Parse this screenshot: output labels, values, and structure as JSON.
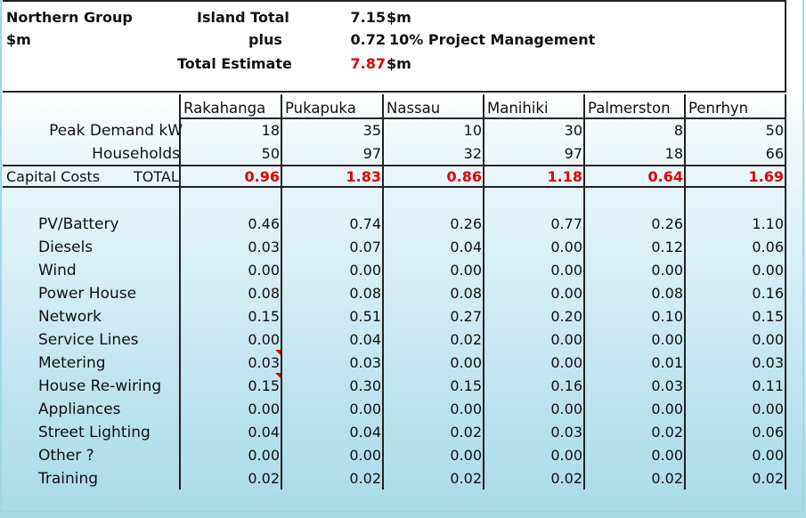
{
  "header": {
    "group_title": "Northern Group",
    "unit": "$m",
    "island_total_label": "Island Total",
    "island_total_value": "7.15",
    "island_total_unit": "$m",
    "plus_label": "plus",
    "plus_value": "0.72",
    "plus_note": "10% Project Management",
    "total_estimate_label": "Total Estimate",
    "total_estimate_value": "7.87",
    "total_estimate_unit": "$m"
  },
  "islands": [
    "Rakahanga",
    "Pukapuka",
    "Nassau",
    "Manihiki",
    "Palmerston",
    "Penrhyn"
  ],
  "summary": {
    "peak_demand_label": "Peak Demand kW",
    "peak_demand": [
      "18",
      "35",
      "10",
      "30",
      "8",
      "50"
    ],
    "households_label": "Households",
    "households": [
      "50",
      "97",
      "32",
      "97",
      "18",
      "66"
    ],
    "capital_costs_label": "Capital Costs",
    "total_label": "TOTAL",
    "capital_totals": [
      "0.96",
      "1.83",
      "0.86",
      "1.18",
      "0.64",
      "1.69"
    ]
  },
  "rows": [
    {
      "label": "PV/Battery",
      "values": [
        "0.46",
        "0.74",
        "0.26",
        "0.77",
        "0.26",
        "1.10"
      ]
    },
    {
      "label": "Diesels",
      "values": [
        "0.03",
        "0.07",
        "0.04",
        "0.00",
        "0.12",
        "0.06"
      ]
    },
    {
      "label": "Wind",
      "values": [
        "0.00",
        "0.00",
        "0.00",
        "0.00",
        "0.00",
        "0.00"
      ]
    },
    {
      "label": "Power House",
      "values": [
        "0.08",
        "0.08",
        "0.08",
        "0.00",
        "0.08",
        "0.16"
      ]
    },
    {
      "label": "Network",
      "values": [
        "0.15",
        "0.51",
        "0.27",
        "0.20",
        "0.10",
        "0.15"
      ]
    },
    {
      "label": "Service Lines",
      "values": [
        "0.00",
        "0.04",
        "0.02",
        "0.00",
        "0.00",
        "0.00"
      ]
    },
    {
      "label": "Metering",
      "values": [
        "0.03",
        "0.03",
        "0.00",
        "0.00",
        "0.01",
        "0.03"
      ]
    },
    {
      "label": "House Re-wiring",
      "values": [
        "0.15",
        "0.30",
        "0.15",
        "0.16",
        "0.03",
        "0.11"
      ]
    },
    {
      "label": "Appliances",
      "values": [
        "0.00",
        "0.00",
        "0.00",
        "0.00",
        "0.00",
        "0.00"
      ]
    },
    {
      "label": "Street Lighting",
      "values": [
        "0.04",
        "0.04",
        "0.02",
        "0.03",
        "0.02",
        "0.06"
      ]
    },
    {
      "label": "Other ?",
      "values": [
        "0.00",
        "0.00",
        "0.00",
        "0.00",
        "0.00",
        "0.00"
      ]
    },
    {
      "label": "Training",
      "values": [
        "0.02",
        "0.02",
        "0.02",
        "0.02",
        "0.02",
        "0.02"
      ]
    }
  ],
  "colors": {
    "highlight_red": "#e00000",
    "background_light_blue": "#a9dbe8"
  }
}
